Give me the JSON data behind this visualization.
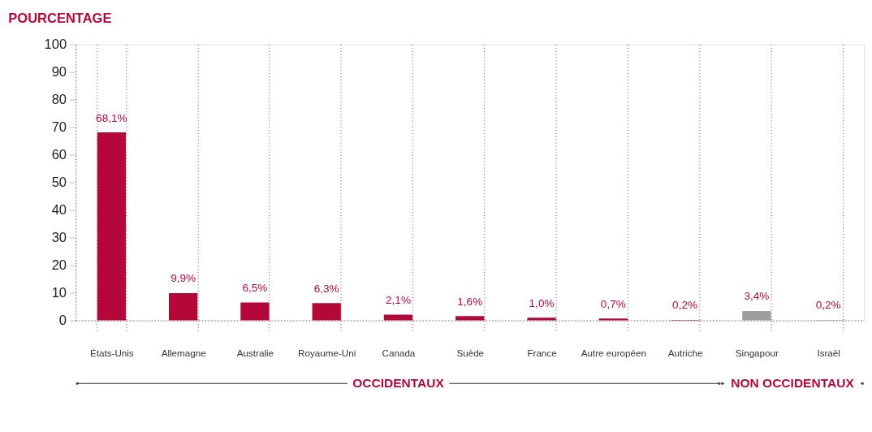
{
  "chart_data": {
    "type": "bar",
    "title": "POURCENTAGE",
    "categories": [
      "États-Unis",
      "Allemagne",
      "Australie",
      "Royaume-Uni",
      "Canada",
      "Suède",
      "France",
      "Autre européen",
      "Autriche",
      "Singapour",
      "Israël"
    ],
    "values": [
      68.1,
      9.9,
      6.5,
      6.3,
      2.1,
      1.6,
      1.0,
      0.7,
      0.2,
      3.4,
      0.2
    ],
    "colors": [
      "#b5083a",
      "#b5083a",
      "#b5083a",
      "#b5083a",
      "#b5083a",
      "#b5083a",
      "#b5083a",
      "#b5083a",
      "#b5083a",
      "#9d9d9c",
      "#9d9d9c"
    ],
    "value_labels": [
      "68,1%",
      "9,9%",
      "6,5%",
      "6,3%",
      "2,1%",
      "1,6%",
      "1,0%",
      "0,7%",
      "0,2%",
      "3,4%",
      "0,2%"
    ],
    "ylim": [
      0,
      100
    ],
    "yticks": [
      0,
      10,
      20,
      30,
      40,
      50,
      60,
      70,
      80,
      90,
      100
    ],
    "grid": "x",
    "annotations": [
      "OCCIDENTAUX",
      "NON OCCIDENTAUX"
    ]
  }
}
